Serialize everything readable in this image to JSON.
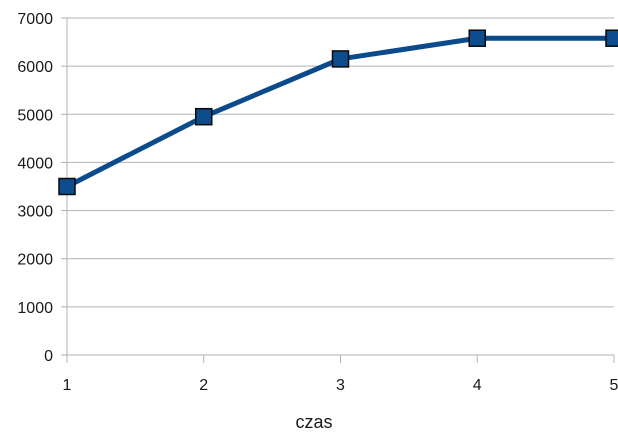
{
  "chart_data": {
    "type": "line",
    "xlabel": "czas",
    "ylabel": "",
    "x": [
      1,
      2,
      3,
      4,
      5
    ],
    "xlim": [
      1,
      5
    ],
    "ylim": [
      0,
      7000
    ],
    "x_ticks": [
      1,
      2,
      3,
      4,
      5
    ],
    "y_ticks": [
      0,
      1000,
      2000,
      3000,
      4000,
      5000,
      6000,
      7000
    ],
    "grid": true,
    "series": [
      {
        "values": [
          3500,
          4950,
          6150,
          6580,
          6580
        ],
        "color": "#0b4a8b",
        "marker": "square"
      }
    ]
  }
}
